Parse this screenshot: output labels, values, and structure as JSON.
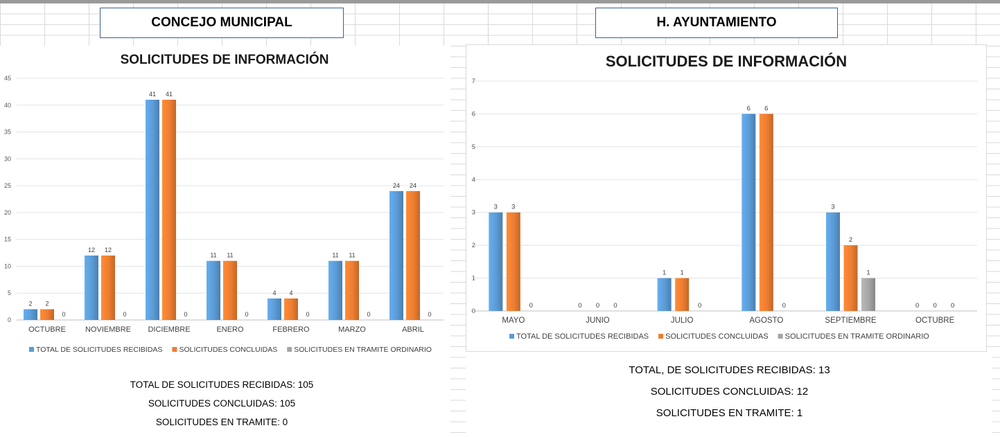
{
  "headers": {
    "left": "CONCEJO MUNICIPAL",
    "right": "H. AYUNTAMIENTO"
  },
  "legend": {
    "received": "TOTAL DE SOLICITUDES RECIBIDAS",
    "concluded": "SOLICITUDES CONCLUIDAS",
    "in_process": "SOLICITUDES EN TRAMITE ORDINARIO"
  },
  "colors": {
    "received": "#5b9bd5",
    "concluded": "#ed7d31",
    "in_process": "#a5a5a5"
  },
  "totals_left": {
    "received": "TOTAL DE SOLICITUDES RECIBIDAS: 105",
    "concluded": "SOLICITUDES CONCLUIDAS: 105",
    "in_process": "SOLICITUDES EN TRAMITE: 0"
  },
  "totals_right": {
    "received": "TOTAL, DE SOLICITUDES RECIBIDAS: 13",
    "concluded": "SOLICITUDES CONCLUIDAS: 12",
    "in_process": "SOLICITUDES EN TRAMITE: 1"
  },
  "chart_data": [
    {
      "type": "bar",
      "title": "SOLICITUDES DE INFORMACIÓN",
      "categories": [
        "OCTUBRE",
        "NOVIEMBRE",
        "DICIEMBRE",
        "ENERO",
        "FEBRERO",
        "MARZO",
        "ABRIL"
      ],
      "series": [
        {
          "name": "TOTAL DE SOLICITUDES RECIBIDAS",
          "values": [
            2,
            12,
            41,
            11,
            4,
            11,
            24
          ]
        },
        {
          "name": "SOLICITUDES CONCLUIDAS",
          "values": [
            2,
            12,
            41,
            11,
            4,
            11,
            24
          ]
        },
        {
          "name": "SOLICITUDES EN TRAMITE ORDINARIO",
          "values": [
            0,
            0,
            0,
            0,
            0,
            0,
            0
          ]
        }
      ],
      "ylim": [
        0,
        45
      ],
      "yticks": [
        0,
        5,
        10,
        15,
        20,
        25,
        30,
        35,
        40,
        45
      ],
      "grid": true,
      "legend_position": "bottom"
    },
    {
      "type": "bar",
      "title": "SOLICITUDES DE INFORMACIÓN",
      "categories": [
        "MAYO",
        "JUNIO",
        "JULIO",
        "AGOSTO",
        "SEPTIEMBRE",
        "OCTUBRE"
      ],
      "series": [
        {
          "name": "TOTAL DE SOLICITUDES RECIBIDAS",
          "values": [
            3,
            0,
            1,
            6,
            3,
            0
          ]
        },
        {
          "name": "SOLICITUDES CONCLUIDAS",
          "values": [
            3,
            0,
            1,
            6,
            2,
            0
          ]
        },
        {
          "name": "SOLICITUDES EN TRAMITE ORDINARIO",
          "values": [
            0,
            0,
            0,
            0,
            1,
            0
          ]
        }
      ],
      "ylim": [
        0,
        7
      ],
      "yticks": [
        0,
        1,
        2,
        3,
        4,
        5,
        6,
        7
      ],
      "grid": true,
      "legend_position": "bottom"
    }
  ]
}
